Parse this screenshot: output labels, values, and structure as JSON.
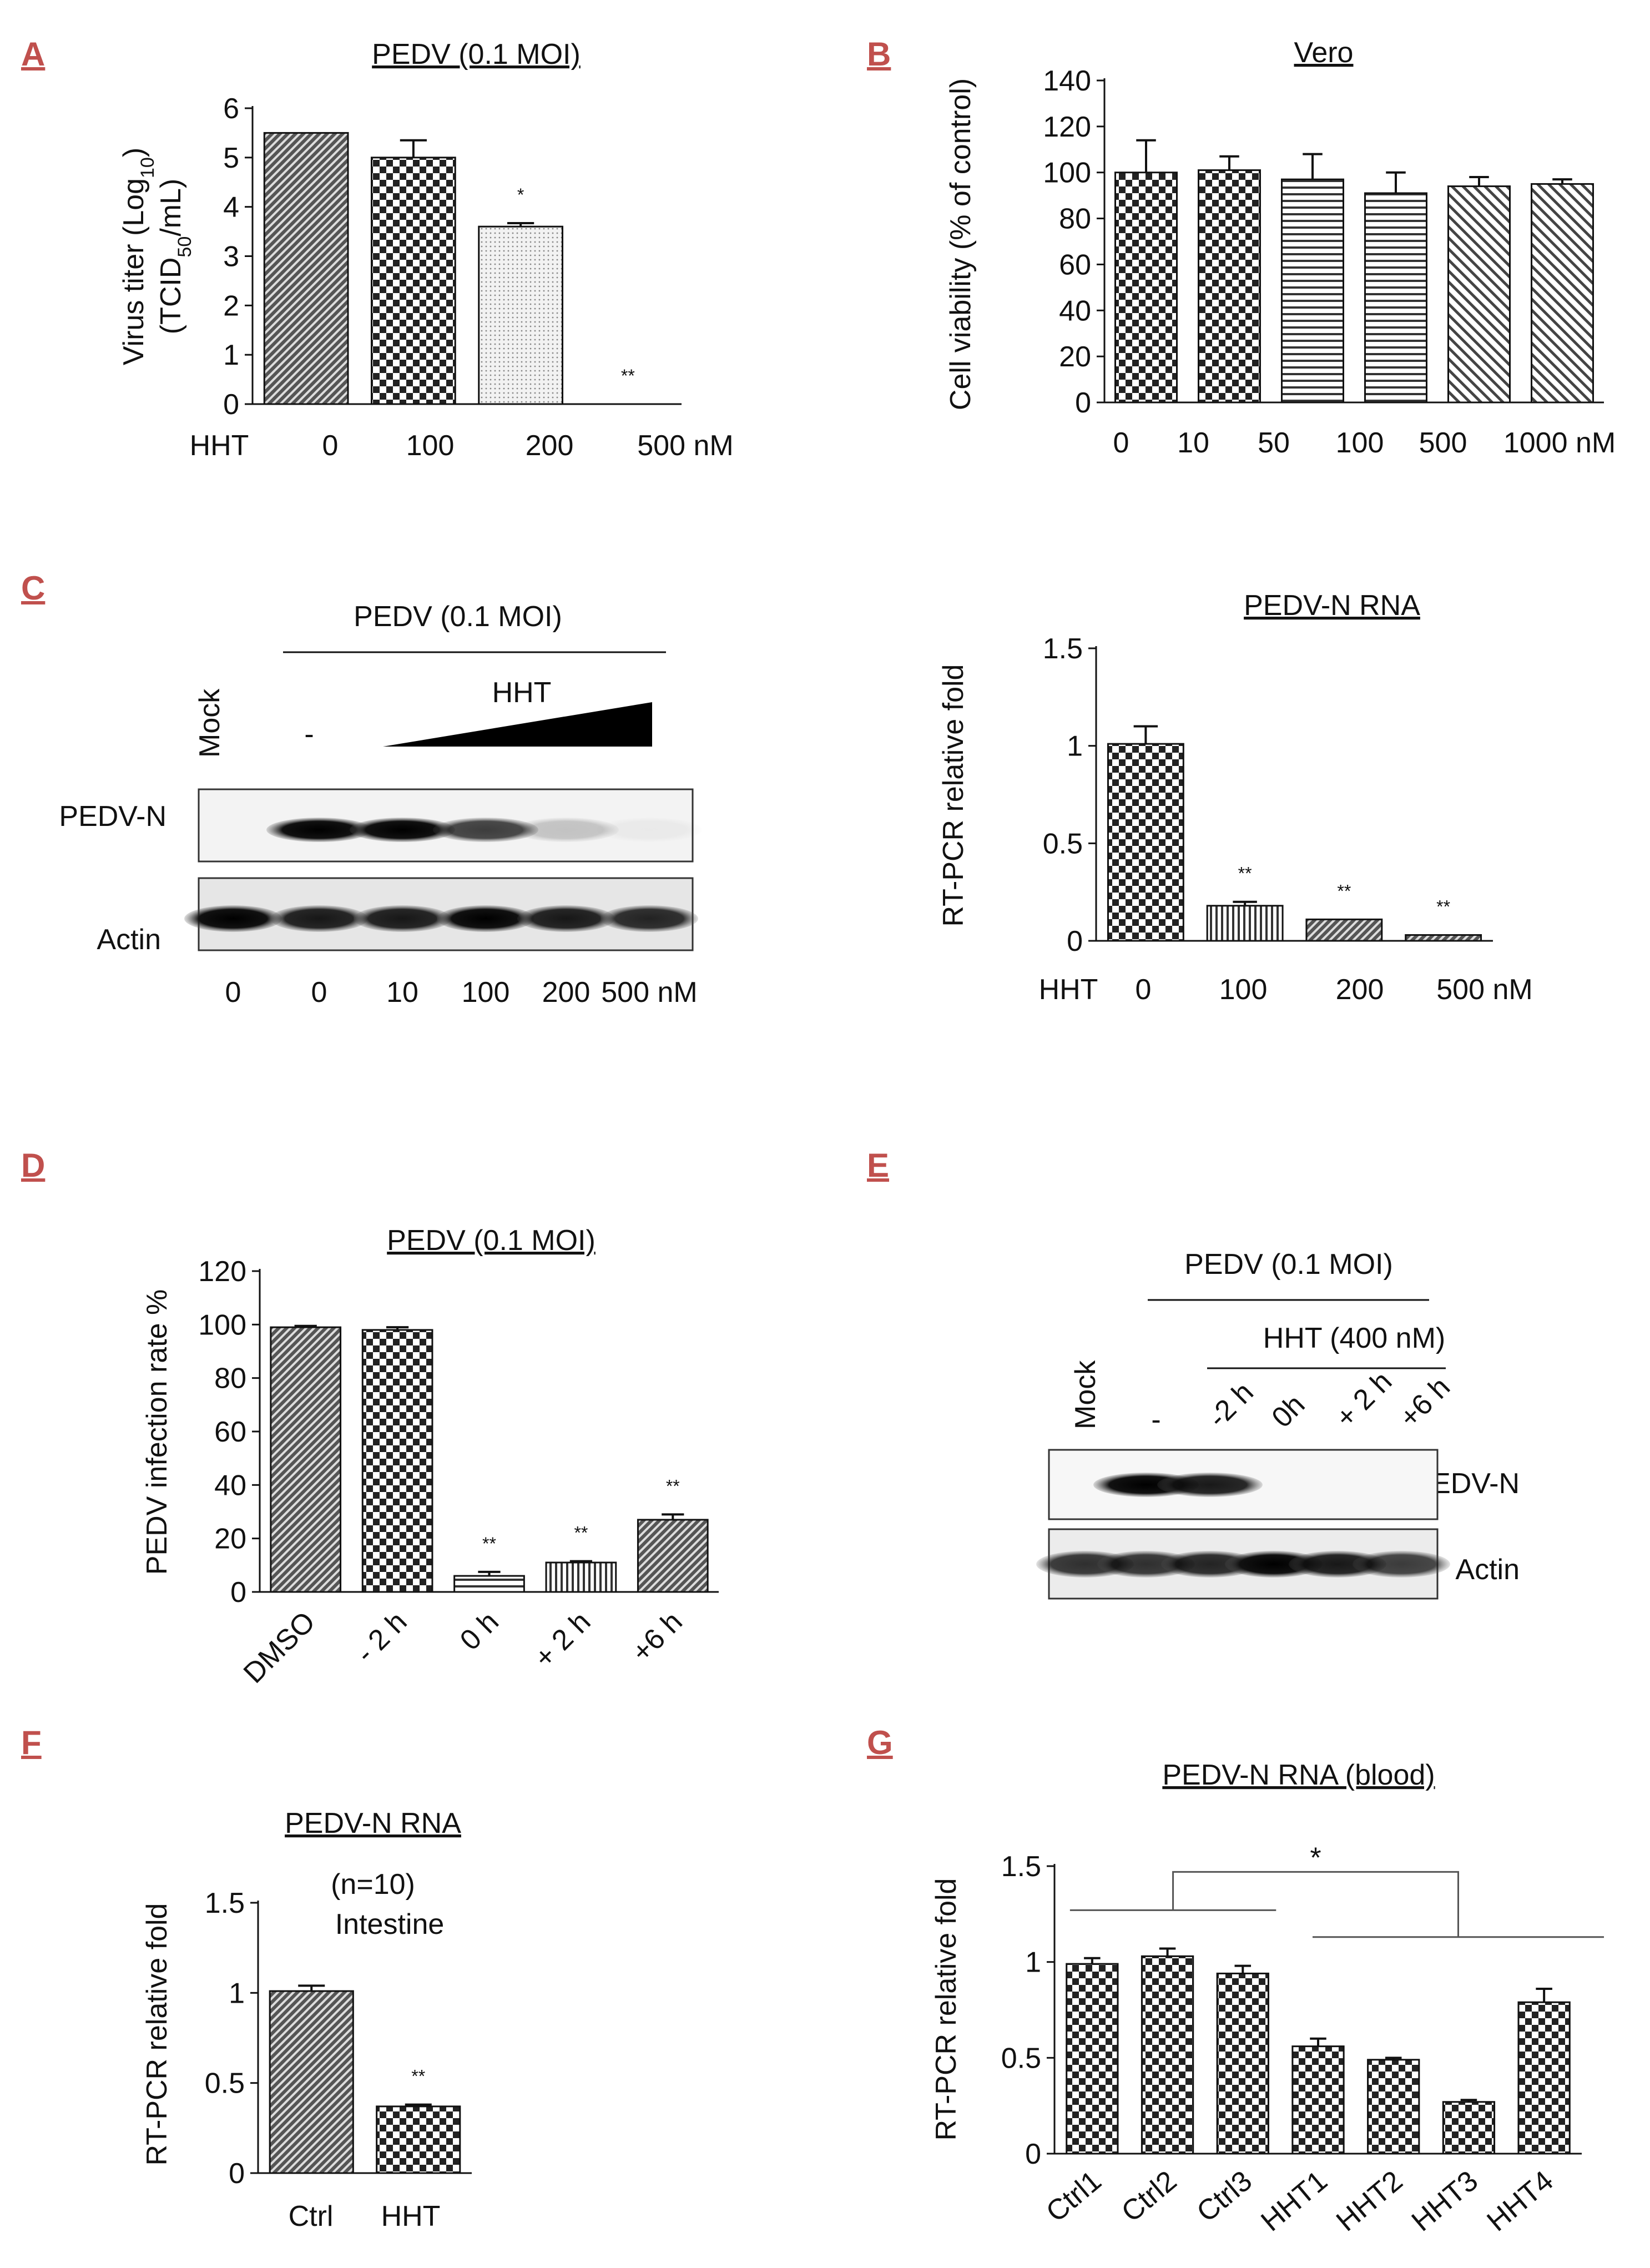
{
  "chart_data": [
    {
      "id": "A",
      "type": "bar",
      "panel_label": "A",
      "title": "PEDV (0.1 MOI)",
      "ylabel_line1": "Virus titer (Log",
      "ylabel_sub1": "10",
      "ylabel_close1": ")",
      "ylabel_line2": "(TCID",
      "ylabel_sub2": "50",
      "ylabel_close2": "/mL)",
      "xprefix": "HHT",
      "categories": [
        "0",
        "100",
        "200",
        "500 nM"
      ],
      "values": [
        5.5,
        5.0,
        3.6,
        0
      ],
      "errors": [
        0,
        0.35,
        0.07,
        0
      ],
      "significance": [
        "",
        "",
        "*",
        "**"
      ],
      "ylim": [
        0,
        6
      ],
      "yticks": [
        "0",
        "1",
        "2",
        "3",
        "4",
        "5",
        "6"
      ],
      "patterns": [
        "diag",
        "check",
        "dots",
        "none"
      ]
    },
    {
      "id": "B",
      "type": "bar",
      "panel_label": "B",
      "title": "Vero",
      "ylabel": "Cell viability (% of control)",
      "categories": [
        "0",
        "10",
        "50",
        "100",
        "500",
        "1000 nM"
      ],
      "values": [
        100,
        101,
        97,
        91,
        94,
        95
      ],
      "errors": [
        14,
        6,
        11,
        9,
        4,
        2
      ],
      "ylim": [
        0,
        140
      ],
      "yticks": [
        "0",
        "20",
        "40",
        "60",
        "80",
        "100",
        "120",
        "140"
      ],
      "patterns": [
        "check",
        "check",
        "hlines",
        "hlines",
        "diagR",
        "diagR"
      ]
    },
    {
      "id": "C2",
      "type": "bar",
      "title": "PEDV-N RNA",
      "ylabel": "RT-PCR relative fold",
      "xprefix": "HHT",
      "categories": [
        "0",
        "100",
        "200",
        "500  nM"
      ],
      "values": [
        1.01,
        0.18,
        0.11,
        0.03
      ],
      "errors": [
        0.09,
        0.02,
        0.0,
        0.0
      ],
      "significance": [
        "",
        "**",
        "**",
        "**"
      ],
      "ylim": [
        0,
        1.5
      ],
      "yticks": [
        "0",
        "0.5",
        "1",
        "1.5"
      ],
      "patterns": [
        "check",
        "vlines",
        "diag",
        "diag"
      ]
    },
    {
      "id": "D",
      "type": "bar",
      "panel_label": "D",
      "title": "PEDV (0.1 MOI)",
      "ylabel": "PEDV infection rate %",
      "categories": [
        "DMSO",
        "- 2 h",
        "0 h",
        "+ 2 h",
        "+6 h"
      ],
      "values": [
        99,
        98,
        6,
        11,
        27
      ],
      "errors": [
        0.5,
        1,
        1.5,
        0.5,
        2
      ],
      "significance": [
        "",
        "",
        "**",
        "**",
        "**"
      ],
      "ylim": [
        0,
        120
      ],
      "yticks": [
        "0",
        "20",
        "40",
        "60",
        "80",
        "100",
        "120"
      ],
      "patterns": [
        "diag",
        "check",
        "hlines",
        "vlines",
        "diag"
      ]
    },
    {
      "id": "F",
      "type": "bar",
      "panel_label": "F",
      "title": "PEDV-N RNA",
      "subtitle": "(n=10)",
      "annotation": "Intestine",
      "ylabel": "RT-PCR relative fold",
      "categories": [
        "Ctrl",
        "HHT"
      ],
      "values": [
        1.01,
        0.37
      ],
      "errors": [
        0.03,
        0.01
      ],
      "significance": [
        "",
        "**"
      ],
      "ylim": [
        0,
        1.5
      ],
      "yticks": [
        "0",
        "0.5",
        "1",
        "1.5"
      ],
      "patterns": [
        "diag",
        "check"
      ]
    },
    {
      "id": "G",
      "type": "bar",
      "panel_label": "G",
      "title": "PEDV-N RNA (blood)",
      "ylabel": "RT-PCR relative fold",
      "categories": [
        "Ctrl1",
        "Ctrl2",
        "Ctrl3",
        "HHT1",
        "HHT2",
        "HHT3",
        "HHT4"
      ],
      "values": [
        0.99,
        1.03,
        0.94,
        0.56,
        0.49,
        0.27,
        0.79
      ],
      "errors": [
        0.03,
        0.04,
        0.04,
        0.04,
        0.01,
        0.01,
        0.07
      ],
      "group_significance": "*",
      "ylim": [
        0,
        1.5
      ],
      "yticks": [
        "0",
        "0.5",
        "1",
        "1.5"
      ],
      "patterns": [
        "check",
        "check",
        "check",
        "check",
        "check",
        "check",
        "check"
      ]
    }
  ],
  "blot_C": {
    "panel_label": "C",
    "header": "PEDV (0.1 MOI)",
    "treatment": "HHT",
    "lane_top": [
      "Mock",
      "-"
    ],
    "rows": [
      "PEDV-N",
      "Actin"
    ],
    "lanes": [
      "0",
      "0",
      "10",
      "100",
      "200",
      "500 nM"
    ],
    "pedvn_intensity": [
      0,
      1,
      1,
      0.75,
      0.2,
      0.04
    ],
    "actin_intensity": [
      1,
      0.9,
      0.9,
      1,
      0.9,
      0.85
    ]
  },
  "blot_E": {
    "panel_label": "E",
    "header": "PEDV (0.1 MOI)",
    "treatment": "HHT (400 nM)",
    "lanes": [
      "Mock",
      "-",
      "-2 h",
      "0h",
      "+ 2 h",
      "+6 h"
    ],
    "rows": [
      "PEDV-N",
      "Actin"
    ],
    "pedvn_intensity": [
      0,
      1,
      0.9,
      0,
      0,
      0
    ],
    "actin_intensity": [
      0.8,
      0.8,
      0.85,
      1,
      0.9,
      0.75
    ]
  }
}
